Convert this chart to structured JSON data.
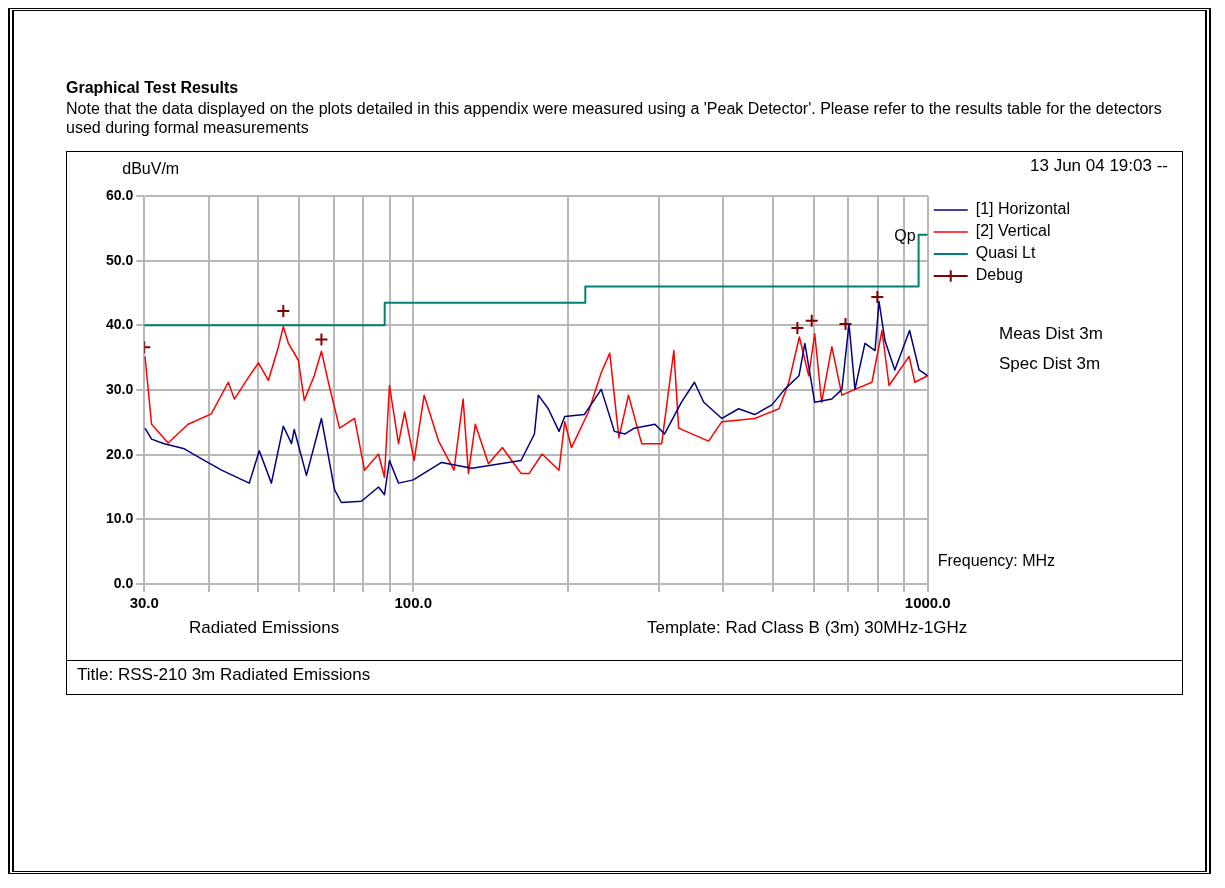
{
  "chart_data": {
    "type": "line",
    "title": "Graphical Test Results",
    "subtitle": "Note that the data displayed on the plots detailed in this appendix were measured using a 'Peak Detector'.  Please refer to the results table for the detectors used during formal measurements",
    "xlabel": "Frequency: MHz",
    "ylabel": "dBuV/m",
    "log": "x",
    "grid": true,
    "legend": "top right",
    "xlim": [
      30,
      1000
    ],
    "xticks": [
      {
        "value": 30,
        "label": "30.0"
      },
      {
        "value": 40,
        "label": null
      },
      {
        "value": 50,
        "label": null
      },
      {
        "value": 60,
        "label": null
      },
      {
        "value": 70,
        "label": null
      },
      {
        "value": 80,
        "label": null
      },
      {
        "value": 90,
        "label": null
      },
      {
        "value": 100,
        "label": "100.0"
      },
      {
        "value": 200,
        "label": null
      },
      {
        "value": 300,
        "label": null
      },
      {
        "value": 400,
        "label": null
      },
      {
        "value": 500,
        "label": null
      },
      {
        "value": 600,
        "label": null
      },
      {
        "value": 700,
        "label": null
      },
      {
        "value": 800,
        "label": null
      },
      {
        "value": 900,
        "label": null
      },
      {
        "value": 1000,
        "label": "1000.0"
      }
    ],
    "ylim": [
      0,
      60
    ],
    "yticks": [
      {
        "value": 0,
        "label": "0.0"
      },
      {
        "value": 10,
        "label": "10.0"
      },
      {
        "value": 20,
        "label": "20.0"
      },
      {
        "value": 30,
        "label": "30.0"
      },
      {
        "value": 40,
        "label": "40.0"
      },
      {
        "value": 50,
        "label": "50.0"
      },
      {
        "value": 60,
        "label": "60.0"
      }
    ],
    "series": [
      {
        "name": "[1] Horizontal",
        "color": "#000080",
        "x": [
          30.1,
          31.0,
          32.8,
          35.9,
          38.7,
          42.4,
          48.0,
          50.2,
          53.0,
          55.9,
          58.0,
          58.7,
          62.0,
          66.3,
          70.3,
          72.5,
          79.3,
          85.6,
          87.9,
          89.9,
          93.6,
          100,
          113.5,
          130,
          162,
          172,
          175,
          183,
          192,
          197,
          215,
          232,
          246,
          258,
          269,
          295,
          308,
          332,
          352,
          367,
          398,
          429,
          461,
          498,
          527,
          562,
          577,
          603,
          651,
          681,
          703,
          722,
          755,
          790,
          804,
          826,
          863,
          922,
          962,
          1000
        ],
        "values": [
          24.1,
          22.4,
          21.7,
          20.9,
          19.4,
          17.6,
          15.6,
          20.6,
          15.6,
          24.4,
          21.7,
          23.9,
          16.8,
          25.6,
          14.6,
          12.6,
          12.8,
          15.0,
          13.8,
          19.1,
          15.6,
          16.1,
          18.8,
          17.9,
          19.1,
          23.2,
          29.2,
          27.1,
          23.6,
          25.9,
          26.2,
          30.1,
          23.6,
          23.2,
          24.1,
          24.7,
          23.2,
          28.1,
          31.2,
          28.1,
          25.6,
          27.1,
          26.2,
          27.7,
          30.1,
          32.2,
          37.2,
          28.1,
          28.6,
          30.1,
          40.2,
          30.1,
          37.2,
          36.1,
          43.7,
          37.6,
          33.1,
          39.2,
          33.1,
          32.2
        ]
      },
      {
        "name": "[2] Vertical",
        "color": "#ff0000",
        "x": [
          30.1,
          31.0,
          33.4,
          36.5,
          40.5,
          43.7,
          44.9,
          47.8,
          50.0,
          52.3,
          54.7,
          55.9,
          57.2,
          59.8,
          61.4,
          64.2,
          66.3,
          68.4,
          71.9,
          76.9,
          80.4,
          85.6,
          87.9,
          89.9,
          93.6,
          96.2,
          100.4,
          105,
          112,
          120,
          125,
          128,
          132,
          140,
          149,
          162,
          168,
          178,
          192,
          197,
          203,
          219,
          232,
          241,
          251,
          262,
          278,
          304,
          321,
          328,
          375,
          398,
          461,
          514,
          537,
          563,
          587,
          603,
          622,
          651,
          681,
          722,
          779,
          815,
          841,
          920,
          944,
          1000
        ],
        "values": [
          35.2,
          24.7,
          21.8,
          24.7,
          26.3,
          31.2,
          28.6,
          31.9,
          34.2,
          31.5,
          36.7,
          39.8,
          37.2,
          34.6,
          28.4,
          32.2,
          36.0,
          31.2,
          24.1,
          25.6,
          17.6,
          20.1,
          16.5,
          30.7,
          21.7,
          26.6,
          19.1,
          29.2,
          22.1,
          17.6,
          28.6,
          17.1,
          24.7,
          18.6,
          21.1,
          17.1,
          17.1,
          20.1,
          17.6,
          25.1,
          21.1,
          26.6,
          32.7,
          35.7,
          22.6,
          29.2,
          21.7,
          21.7,
          36.1,
          24.1,
          22.1,
          25.1,
          25.6,
          27.1,
          31.2,
          38.2,
          32.2,
          38.7,
          28.1,
          36.7,
          29.2,
          30.1,
          31.2,
          39.2,
          30.7,
          35.2,
          31.2,
          32.2
        ]
      },
      {
        "name": "Quasi Lt",
        "type": "step",
        "color": "#00806e",
        "x": [
          30,
          88,
          216,
          960,
          1000
        ],
        "values": [
          40,
          43.5,
          46,
          54,
          54
        ]
      },
      {
        "name": "Debug",
        "type": "scatter",
        "marker": "cross",
        "color": "#800000",
        "x": [
          30,
          55.9,
          66.3,
          558,
          595,
          692,
          798
        ],
        "values": [
          36.6,
          42.2,
          37.8,
          39.6,
          40.7,
          40.2,
          44.4
        ]
      }
    ],
    "annotations": [
      "13 Jun 04 19:03 --",
      "Meas Dist 3m",
      "Spec Dist 3m",
      "Radiated Emissions",
      "Template: Rad Class B (3m) 30MHz-1GHz",
      "Title: RSS-210 3m Radiated Emissions",
      {
        "text": "Qp",
        "x": 960,
        "y": 54
      }
    ]
  }
}
